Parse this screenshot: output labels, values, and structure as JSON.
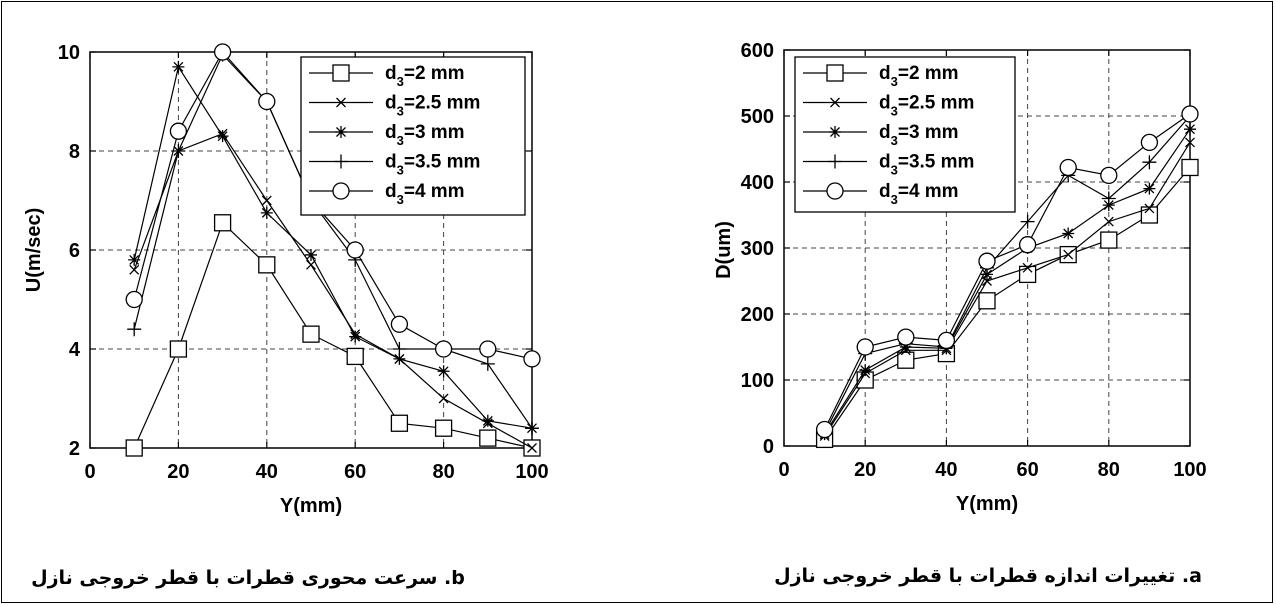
{
  "chart_data": [
    {
      "type": "line",
      "caption": "b. سرعت محوری قطرات با قطر خروجی نازل",
      "xlabel": "Y(mm)",
      "ylabel": "U(m/sec)",
      "xlim": [
        0,
        100
      ],
      "ylim": [
        2,
        10
      ],
      "xticks": [
        "0",
        "20",
        "40",
        "60",
        "80",
        "100"
      ],
      "yticks": [
        "2",
        "4",
        "6",
        "8",
        "10"
      ],
      "grid": true,
      "legend_position": "top-right",
      "x": [
        10,
        20,
        30,
        40,
        50,
        60,
        70,
        80,
        90,
        100
      ],
      "series": [
        {
          "name": "d3=2 mm",
          "marker": "square",
          "values": [
            2.0,
            4.0,
            6.55,
            5.7,
            4.3,
            3.85,
            2.5,
            2.4,
            2.2,
            2.0
          ]
        },
        {
          "name": "d3=2.5 mm",
          "marker": "x",
          "values": [
            5.6,
            8.0,
            8.35,
            7.0,
            5.7,
            4.3,
            3.8,
            3.0,
            2.5,
            2.0
          ]
        },
        {
          "name": "d3=3 mm",
          "marker": "star",
          "values": [
            5.8,
            9.7,
            8.3,
            6.75,
            5.9,
            4.25,
            3.8,
            3.55,
            2.55,
            2.4
          ]
        },
        {
          "name": "d3=3.5 mm",
          "marker": "plus",
          "values": [
            4.4,
            8.0,
            9.95,
            9.0,
            7.0,
            5.8,
            4.0,
            4.0,
            3.7,
            2.4
          ]
        },
        {
          "name": "d3=4 mm",
          "marker": "circle",
          "values": [
            5.0,
            8.4,
            10.0,
            9.0,
            7.0,
            6.0,
            4.5,
            4.0,
            4.0,
            3.8
          ]
        }
      ]
    },
    {
      "type": "line",
      "caption": "a. تغییرات اندازه قطرات با قطر خروجی نازل",
      "xlabel": "Y(mm)",
      "ylabel": "D(um)",
      "xlim": [
        0,
        100
      ],
      "ylim": [
        0,
        600
      ],
      "xticks": [
        "0",
        "20",
        "40",
        "60",
        "80",
        "100"
      ],
      "yticks": [
        "0",
        "100",
        "200",
        "300",
        "400",
        "500",
        "600"
      ],
      "grid": true,
      "legend_position": "top-left",
      "x": [
        10,
        20,
        30,
        40,
        50,
        60,
        70,
        80,
        90,
        100
      ],
      "series": [
        {
          "name": "d3=2 mm",
          "marker": "square",
          "values": [
            10,
            100,
            130,
            140,
            220,
            260,
            290,
            312,
            350,
            422
          ]
        },
        {
          "name": "d3=2.5 mm",
          "marker": "x",
          "values": [
            15,
            110,
            145,
            145,
            250,
            270,
            290,
            340,
            360,
            460
          ]
        },
        {
          "name": "d3=3 mm",
          "marker": "star",
          "values": [
            18,
            115,
            150,
            148,
            260,
            300,
            322,
            365,
            390,
            480
          ]
        },
        {
          "name": "d3=3.5 mm",
          "marker": "plus",
          "values": [
            20,
            140,
            155,
            150,
            270,
            340,
            410,
            375,
            430,
            500
          ]
        },
        {
          "name": "d3=4 mm",
          "marker": "circle",
          "values": [
            25,
            150,
            165,
            160,
            280,
            305,
            422,
            410,
            460,
            503
          ]
        }
      ]
    }
  ]
}
